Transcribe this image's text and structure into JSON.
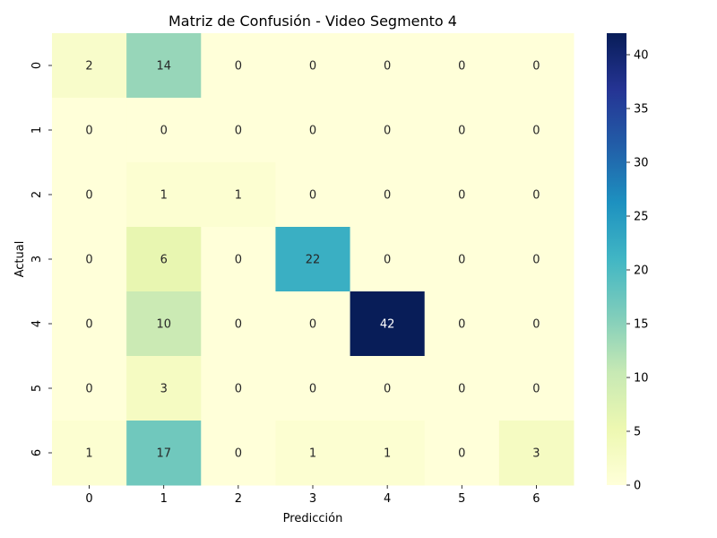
{
  "chart_data": {
    "type": "heatmap",
    "title": "Matriz de Confusión - Video Segmento 4",
    "xlabel": "Predicción",
    "ylabel": "Actual",
    "x_categories": [
      "0",
      "1",
      "2",
      "3",
      "4",
      "5",
      "6"
    ],
    "y_categories": [
      "0",
      "1",
      "2",
      "3",
      "4",
      "5",
      "6"
    ],
    "values": [
      [
        2,
        14,
        0,
        0,
        0,
        0,
        0
      ],
      [
        0,
        0,
        0,
        0,
        0,
        0,
        0
      ],
      [
        0,
        1,
        1,
        0,
        0,
        0,
        0
      ],
      [
        0,
        6,
        0,
        22,
        0,
        0,
        0
      ],
      [
        0,
        10,
        0,
        0,
        42,
        0,
        0
      ],
      [
        0,
        3,
        0,
        0,
        0,
        0,
        0
      ],
      [
        1,
        17,
        0,
        1,
        1,
        0,
        3
      ]
    ],
    "colormap": "YlGnBu",
    "vmin": 0,
    "vmax": 42,
    "colorbar_ticks": [
      0,
      5,
      10,
      15,
      20,
      25,
      30,
      35,
      40
    ],
    "annotations": true,
    "grid": false
  }
}
